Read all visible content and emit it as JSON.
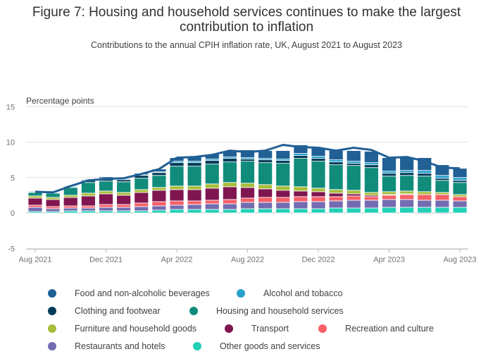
{
  "title": "Figure 7: Housing and household services continues to make the largest contribution to inflation",
  "subtitle": "Contributions to the annual CPIH inflation rate, UK, August 2021 to August 2023",
  "chart_data": {
    "type": "bar",
    "stacked": true,
    "ylabel": "Percentage points",
    "ylim": [
      -5,
      15
    ],
    "yticks": [
      15,
      10,
      5,
      0,
      -5
    ],
    "grid": true,
    "legend_position": "bottom",
    "categories": [
      "Aug 2021",
      "Sep 2021",
      "Oct 2021",
      "Nov 2021",
      "Dec 2021",
      "Jan 2022",
      "Feb 2022",
      "Mar 2022",
      "Apr 2022",
      "May 2022",
      "Jun 2022",
      "Jul 2022",
      "Aug 2022",
      "Sep 2022",
      "Oct 2022",
      "Nov 2022",
      "Dec 2022",
      "Jan 2023",
      "Feb 2023",
      "Mar 2023",
      "Apr 2023",
      "May 2023",
      "Jun 2023",
      "Jul 2023",
      "Aug 2023"
    ],
    "xtick_labels": [
      "Aug 2021",
      "Dec 2021",
      "Apr 2022",
      "Aug 2022",
      "Dec 2022",
      "Apr 2023",
      "Aug 2023"
    ],
    "xtick_indices": [
      0,
      4,
      8,
      12,
      16,
      20,
      24
    ],
    "series": [
      {
        "name": "Other goods and services",
        "color": "#22d0b6",
        "values": [
          0.2,
          0.2,
          0.3,
          0.3,
          0.3,
          0.3,
          0.3,
          0.4,
          0.5,
          0.5,
          0.5,
          0.5,
          0.6,
          0.6,
          0.6,
          0.6,
          0.6,
          0.7,
          0.7,
          0.7,
          0.8,
          0.8,
          0.8,
          0.8,
          0.8
        ]
      },
      {
        "name": "Restaurants and hotels",
        "color": "#746cb1",
        "values": [
          0.6,
          0.4,
          0.4,
          0.4,
          0.5,
          0.5,
          0.6,
          0.6,
          0.6,
          0.7,
          0.8,
          0.8,
          0.9,
          0.9,
          0.9,
          1.0,
          1.0,
          1.0,
          1.1,
          1.1,
          1.1,
          1.1,
          1.0,
          1.0,
          0.9
        ]
      },
      {
        "name": "Recreation and culture",
        "color": "#f66068",
        "values": [
          0.3,
          0.3,
          0.3,
          0.3,
          0.4,
          0.4,
          0.5,
          0.6,
          0.6,
          0.5,
          0.5,
          0.6,
          0.6,
          0.7,
          0.7,
          0.7,
          0.7,
          0.6,
          0.6,
          0.5,
          0.6,
          0.7,
          0.8,
          0.8,
          0.6
        ]
      },
      {
        "name": "Transport",
        "color": "#801650",
        "values": [
          1.0,
          1.0,
          1.2,
          1.4,
          1.5,
          1.3,
          1.5,
          1.6,
          1.6,
          1.6,
          1.7,
          1.8,
          1.5,
          1.2,
          1.0,
          0.8,
          0.7,
          0.5,
          0.3,
          0.2,
          0.1,
          0.1,
          -0.1,
          -0.1,
          0.0
        ]
      },
      {
        "name": "Furniture and household goods",
        "color": "#a8bd3a",
        "values": [
          0.3,
          0.3,
          0.3,
          0.4,
          0.4,
          0.4,
          0.4,
          0.4,
          0.5,
          0.5,
          0.6,
          0.6,
          0.6,
          0.6,
          0.6,
          0.6,
          0.5,
          0.5,
          0.5,
          0.4,
          0.4,
          0.4,
          0.4,
          0.3,
          0.3
        ]
      },
      {
        "name": "Housing and household services",
        "color": "#118c7b",
        "values": [
          0.5,
          0.6,
          1.1,
          1.5,
          1.4,
          1.5,
          1.6,
          1.7,
          2.8,
          2.8,
          2.8,
          2.9,
          3.1,
          3.1,
          3.2,
          4.0,
          3.8,
          3.5,
          3.5,
          3.5,
          2.2,
          2.2,
          2.2,
          1.7,
          1.7
        ]
      },
      {
        "name": "Clothing and footwear",
        "color": "#003c57",
        "values": [
          0.0,
          0.1,
          0.1,
          0.3,
          0.3,
          0.3,
          0.4,
          0.4,
          0.5,
          0.5,
          0.5,
          0.5,
          0.3,
          0.4,
          0.4,
          0.4,
          0.4,
          0.4,
          0.3,
          0.4,
          0.4,
          0.4,
          0.4,
          0.3,
          0.3
        ]
      },
      {
        "name": "Alcohol and tobacco",
        "color": "#27a0cc",
        "values": [
          0.1,
          0.1,
          0.1,
          0.1,
          0.1,
          0.1,
          0.1,
          0.1,
          0.2,
          0.2,
          0.2,
          0.2,
          0.2,
          0.2,
          0.2,
          0.3,
          0.3,
          0.3,
          0.3,
          0.3,
          0.3,
          0.3,
          0.4,
          0.4,
          0.4
        ]
      },
      {
        "name": "Food and non-alcoholic beverages",
        "color": "#206095",
        "values": [
          0.1,
          0.1,
          0.1,
          0.1,
          0.2,
          0.1,
          0.2,
          0.4,
          0.5,
          0.6,
          0.7,
          0.8,
          1.1,
          1.1,
          1.2,
          1.2,
          1.2,
          1.3,
          1.5,
          1.6,
          1.9,
          1.9,
          1.8,
          1.5,
          1.3
        ]
      }
    ],
    "line_series": {
      "name": "CPIH annual rate",
      "color": "#206095",
      "values": [
        3.0,
        2.9,
        3.8,
        4.6,
        4.8,
        4.9,
        5.5,
        6.2,
        7.8,
        7.9,
        8.2,
        8.8,
        8.6,
        8.8,
        9.6,
        9.3,
        9.2,
        8.8,
        9.2,
        8.9,
        7.8,
        7.9,
        7.3,
        6.4,
        6.3
      ]
    }
  },
  "legend": {
    "items": [
      {
        "label": "Food and non-alcoholic beverages",
        "color": "#206095"
      },
      {
        "label": "Alcohol and tobacco",
        "color": "#27a0cc"
      },
      {
        "label": "Clothing and footwear",
        "color": "#003c57"
      },
      {
        "label": "Housing and household services",
        "color": "#118c7b"
      },
      {
        "label": "Furniture and household goods",
        "color": "#a8bd3a"
      },
      {
        "label": "Transport",
        "color": "#801650"
      },
      {
        "label": "Recreation and culture",
        "color": "#f66068"
      },
      {
        "label": "Restaurants and hotels",
        "color": "#746cb1"
      },
      {
        "label": "Other goods and services",
        "color": "#22d0b6"
      }
    ]
  }
}
